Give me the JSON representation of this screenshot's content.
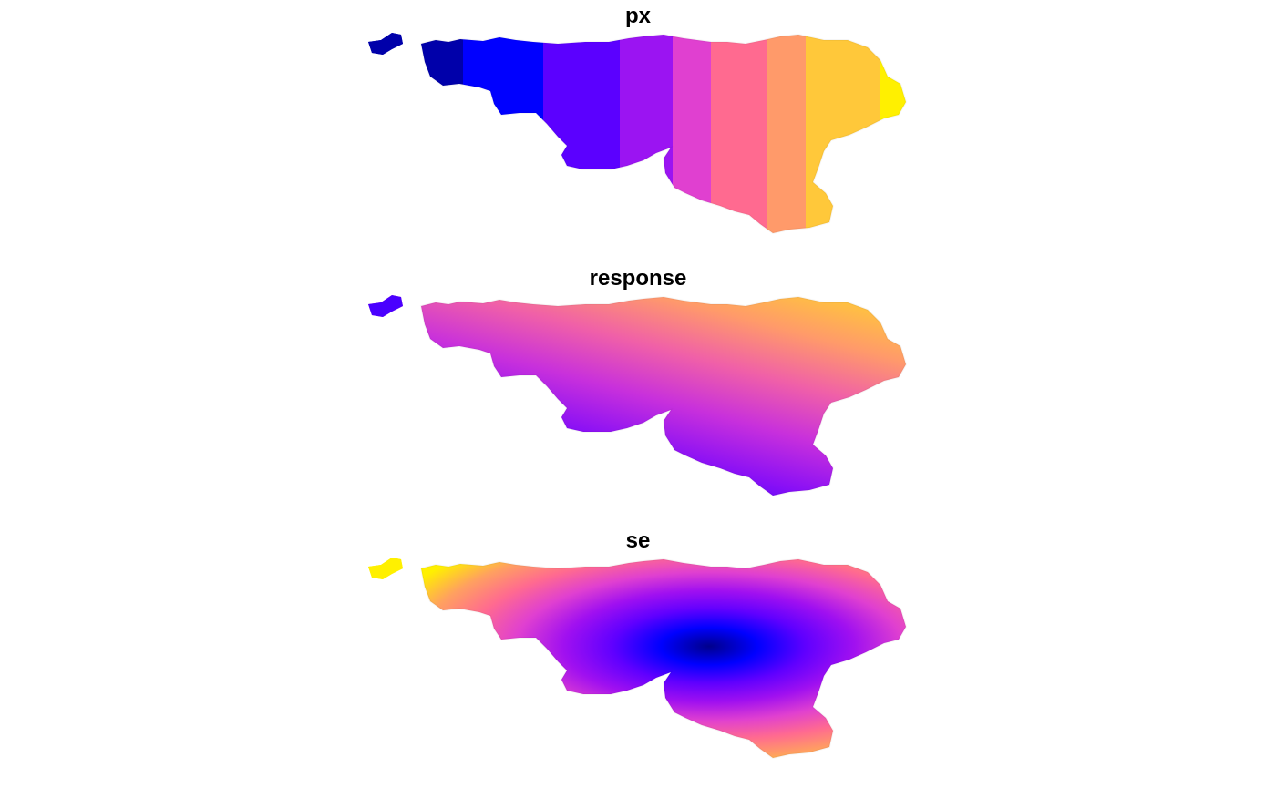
{
  "panels": [
    {
      "title": "px",
      "fill": "bands",
      "colors": [
        "#0000AA",
        "#0000FF",
        "#5B00FF",
        "#9B14F2",
        "#E040D0",
        "#FF6A90",
        "#FF9A6A",
        "#FFC83A",
        "#FFF000"
      ]
    },
    {
      "title": "response",
      "fill": "gradient",
      "colors": [
        "#0000CC",
        "#3A00FF",
        "#8A10F5",
        "#C830DC",
        "#F060A8",
        "#FF9A6A",
        "#FFC83A"
      ]
    },
    {
      "title": "se",
      "fill": "radial",
      "colors": [
        "#00008B",
        "#0000FF",
        "#6000FF",
        "#A010F0",
        "#E040D0",
        "#FF6A90",
        "#FFA060",
        "#FFF000"
      ]
    }
  ]
}
